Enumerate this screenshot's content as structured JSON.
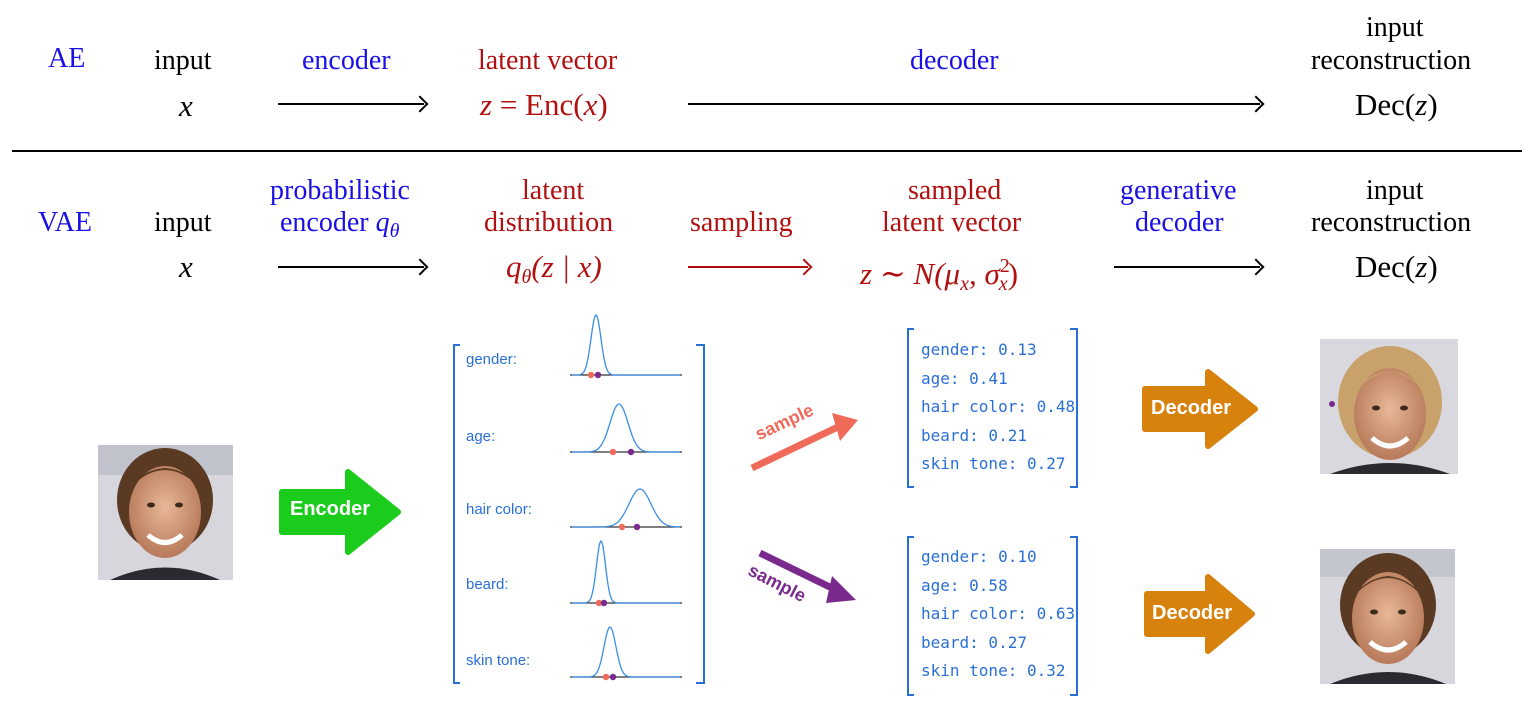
{
  "ae": {
    "tag": "AE",
    "input_label": "input",
    "input_var": "x",
    "encoder_label": "encoder",
    "latent_label": "latent vector",
    "latent_expr_lhs": "z",
    "latent_expr_rhs": "= Enc(",
    "latent_expr_var": "x",
    "latent_expr_close": ")",
    "decoder_label": "decoder",
    "recon_line1": "input",
    "recon_line2": "reconstruction",
    "recon_expr": "Dec(",
    "recon_var": "z",
    "recon_close": ")"
  },
  "vae": {
    "tag": "VAE",
    "input_label": "input",
    "input_var": "x",
    "encoder_line1": "probabilistic",
    "encoder_line2": "encoder",
    "encoder_q": "q",
    "encoder_theta": "θ",
    "latent_line1": "latent",
    "latent_line2": "distribution",
    "latent_expr_q": "q",
    "latent_expr_theta": "θ",
    "latent_expr_rest": "(z | x)",
    "sampling_label": "sampling",
    "sampled_line1": "sampled",
    "sampled_line2": "latent vector",
    "sampled_expr_a": "z ∼ N(μ",
    "sampled_expr_x1": "x",
    "sampled_expr_b": ", σ",
    "sampled_expr_sup": "2",
    "sampled_expr_x2": "x",
    "sampled_expr_c": ")",
    "gen_line1": "generative",
    "gen_line2": "decoder",
    "recon_line1": "input",
    "recon_line2": "reconstruction",
    "recon_expr": "Dec(",
    "recon_var": "z",
    "recon_close": ")"
  },
  "illustration": {
    "encoder_button": "Encoder",
    "decoder_button_1": "Decoder",
    "decoder_button_2": "Decoder",
    "sample_label_1": "sample",
    "sample_label_2": "sample",
    "distribution_labels": [
      "gender:",
      "age:",
      "hair color:",
      "beard:",
      "skin tone:"
    ],
    "sample_vector_1": [
      "gender: 0.13",
      "age: 0.41",
      "hair color: 0.48",
      "beard: 0.21",
      "skin tone: 0.27"
    ],
    "sample_vector_2": [
      "gender: 0.10",
      "age: 0.58",
      "hair color: 0.63",
      "beard: 0.27",
      "skin tone: 0.32"
    ],
    "colors": {
      "encoder_green": "#1ccc1c",
      "decoder_orange": "#d8820e",
      "sample_red": "#f06a5a",
      "sample_purple": "#7a2a8c",
      "list_blue": "#2a6fd6",
      "face_skin": "#d9a283",
      "hair_blonde": "#c8a26a",
      "hair_brown": "#5a3a22"
    },
    "icons": [
      "input-face-photo",
      "reconstructed-face-photo-1",
      "reconstructed-face-photo-2"
    ]
  }
}
